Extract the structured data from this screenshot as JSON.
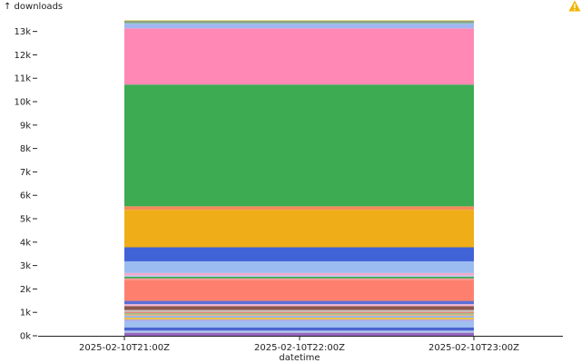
{
  "chart_data": {
    "type": "area",
    "ylabel": "↑ downloads",
    "xlabel": "datetime",
    "x_ticks": [
      "2025-02-10T21:00Z",
      "2025-02-10T22:00Z",
      "2025-02-10T23:00Z"
    ],
    "y_ticks": [
      "0k",
      "1k",
      "2k",
      "3k",
      "4k",
      "5k",
      "6k",
      "7k",
      "8k",
      "9k",
      "10k",
      "11k",
      "12k",
      "13k"
    ],
    "ylim": [
      0,
      13800
    ],
    "x_extent": [
      "2025-02-10T21:00Z",
      "2025-02-10T23:00Z"
    ],
    "series": [
      {
        "color": "#9467bd",
        "value": 130
      },
      {
        "color": "#aec7e8",
        "value": 90
      },
      {
        "color": "#4a63d3",
        "value": 140
      },
      {
        "color": "#9fbff0",
        "value": 280
      },
      {
        "color": "#c0a0e0",
        "value": 60
      },
      {
        "color": "#e9c240",
        "value": 80
      },
      {
        "color": "#8fb0e8",
        "value": 70
      },
      {
        "color": "#f4b38a",
        "value": 60
      },
      {
        "color": "#7dc47a",
        "value": 50
      },
      {
        "color": "#e08a7a",
        "value": 70
      },
      {
        "color": "#c7c7c7",
        "value": 70
      },
      {
        "color": "#8c564b",
        "value": 170
      },
      {
        "color": "#f7b6d2",
        "value": 80
      },
      {
        "color": "#5a6fd6",
        "value": 140
      },
      {
        "color": "#ff7f6e",
        "value": 900
      },
      {
        "color": "#ff9896",
        "value": 60
      },
      {
        "color": "#3da853",
        "value": 70
      },
      {
        "color": "#b8c8f0",
        "value": 60
      },
      {
        "color": "#f7a8c8",
        "value": 100
      },
      {
        "color": "#9bbcf0",
        "value": 500
      },
      {
        "color": "#4163d8",
        "value": 600
      },
      {
        "color": "#efae17",
        "value": 1600
      },
      {
        "color": "#f58a5a",
        "value": 150
      },
      {
        "color": "#3cab52",
        "value": 5200
      },
      {
        "color": "#ff88b4",
        "value": 2400
      },
      {
        "color": "#9fb6f0",
        "value": 200
      },
      {
        "color": "#88c2a8",
        "value": 60
      },
      {
        "color": "#7f7f7f",
        "value": 50
      },
      {
        "color": "#bcbd22",
        "value": 30
      }
    ]
  },
  "status": {
    "warning_icon": "warning-triangle-icon",
    "warning_color": "#f0b400"
  }
}
